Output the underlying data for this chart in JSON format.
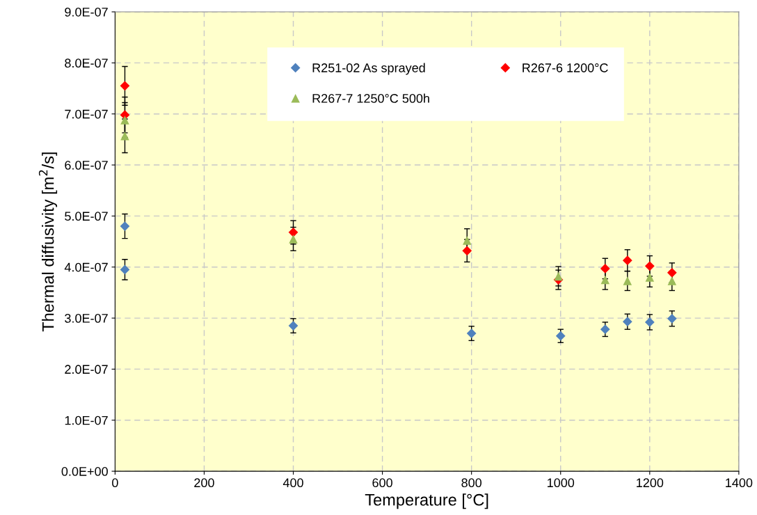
{
  "chart_data": {
    "type": "scatter",
    "xlabel": "Temperature [°C]",
    "ylabel": "Thermal diffusivity [m$^{2}$/s]",
    "xlim": [
      0,
      1400
    ],
    "xticks": [
      0,
      200,
      400,
      600,
      800,
      1000,
      1200,
      1400
    ],
    "ylim": [
      0,
      9e-07
    ],
    "yticks": [
      {
        "value": 0,
        "label": "0.0E+00"
      },
      {
        "value": 1e-07,
        "label": "1.0E-07"
      },
      {
        "value": 2e-07,
        "label": "2.0E-07"
      },
      {
        "value": 3e-07,
        "label": "3.0E-07"
      },
      {
        "value": 4e-07,
        "label": "4.0E-07"
      },
      {
        "value": 5e-07,
        "label": "5.0E-07"
      },
      {
        "value": 6e-07,
        "label": "6.0E-07"
      },
      {
        "value": 7e-07,
        "label": "7.0E-07"
      },
      {
        "value": 8e-07,
        "label": "8.0E-07"
      },
      {
        "value": 9e-07,
        "label": "9.0E-07"
      }
    ],
    "grid": true,
    "legend": "top",
    "series": [
      {
        "name": "R251-02 As sprayed",
        "color": "#4f81bd",
        "marker": "diamond",
        "x": [
          22,
          22,
          400,
          800,
          1000,
          1100,
          1150,
          1200,
          1250
        ],
        "values": [
          4.8e-07,
          3.95e-07,
          2.85e-07,
          2.7e-07,
          2.65e-07,
          2.78e-07,
          2.93e-07,
          2.92e-07,
          2.99e-07
        ],
        "errors": [
          2.4e-08,
          2e-08,
          1.4e-08,
          1.4e-08,
          1.3e-08,
          1.4e-08,
          1.5e-08,
          1.5e-08,
          1.5e-08
        ]
      },
      {
        "name": "R267-6 1200°C",
        "color": "#ff0000",
        "marker": "diamond",
        "x": [
          22,
          22,
          400,
          790,
          995,
          1100,
          1150,
          1200,
          1250
        ],
        "values": [
          7.55e-07,
          6.98e-07,
          4.68e-07,
          4.32e-07,
          3.75e-07,
          3.97e-07,
          4.13e-07,
          4.02e-07,
          3.89e-07
        ],
        "errors": [
          3.8e-08,
          3.5e-08,
          2.3e-08,
          2.2e-08,
          1.9e-08,
          2e-08,
          2.1e-08,
          2e-08,
          1.9e-08
        ]
      },
      {
        "name": "R267-7 1250°C 500h",
        "color": "#9bbb59",
        "marker": "triangle",
        "x": [
          22,
          22,
          400,
          790,
          995,
          1100,
          1150,
          1200,
          1250
        ],
        "values": [
          6.88e-07,
          6.57e-07,
          4.55e-07,
          4.52e-07,
          3.82e-07,
          3.75e-07,
          3.73e-07,
          3.8e-07,
          3.73e-07
        ],
        "errors": [
          3.4e-08,
          3.3e-08,
          2.3e-08,
          2.3e-08,
          1.9e-08,
          1.9e-08,
          1.9e-08,
          1.9e-08,
          1.9e-08
        ]
      }
    ]
  }
}
